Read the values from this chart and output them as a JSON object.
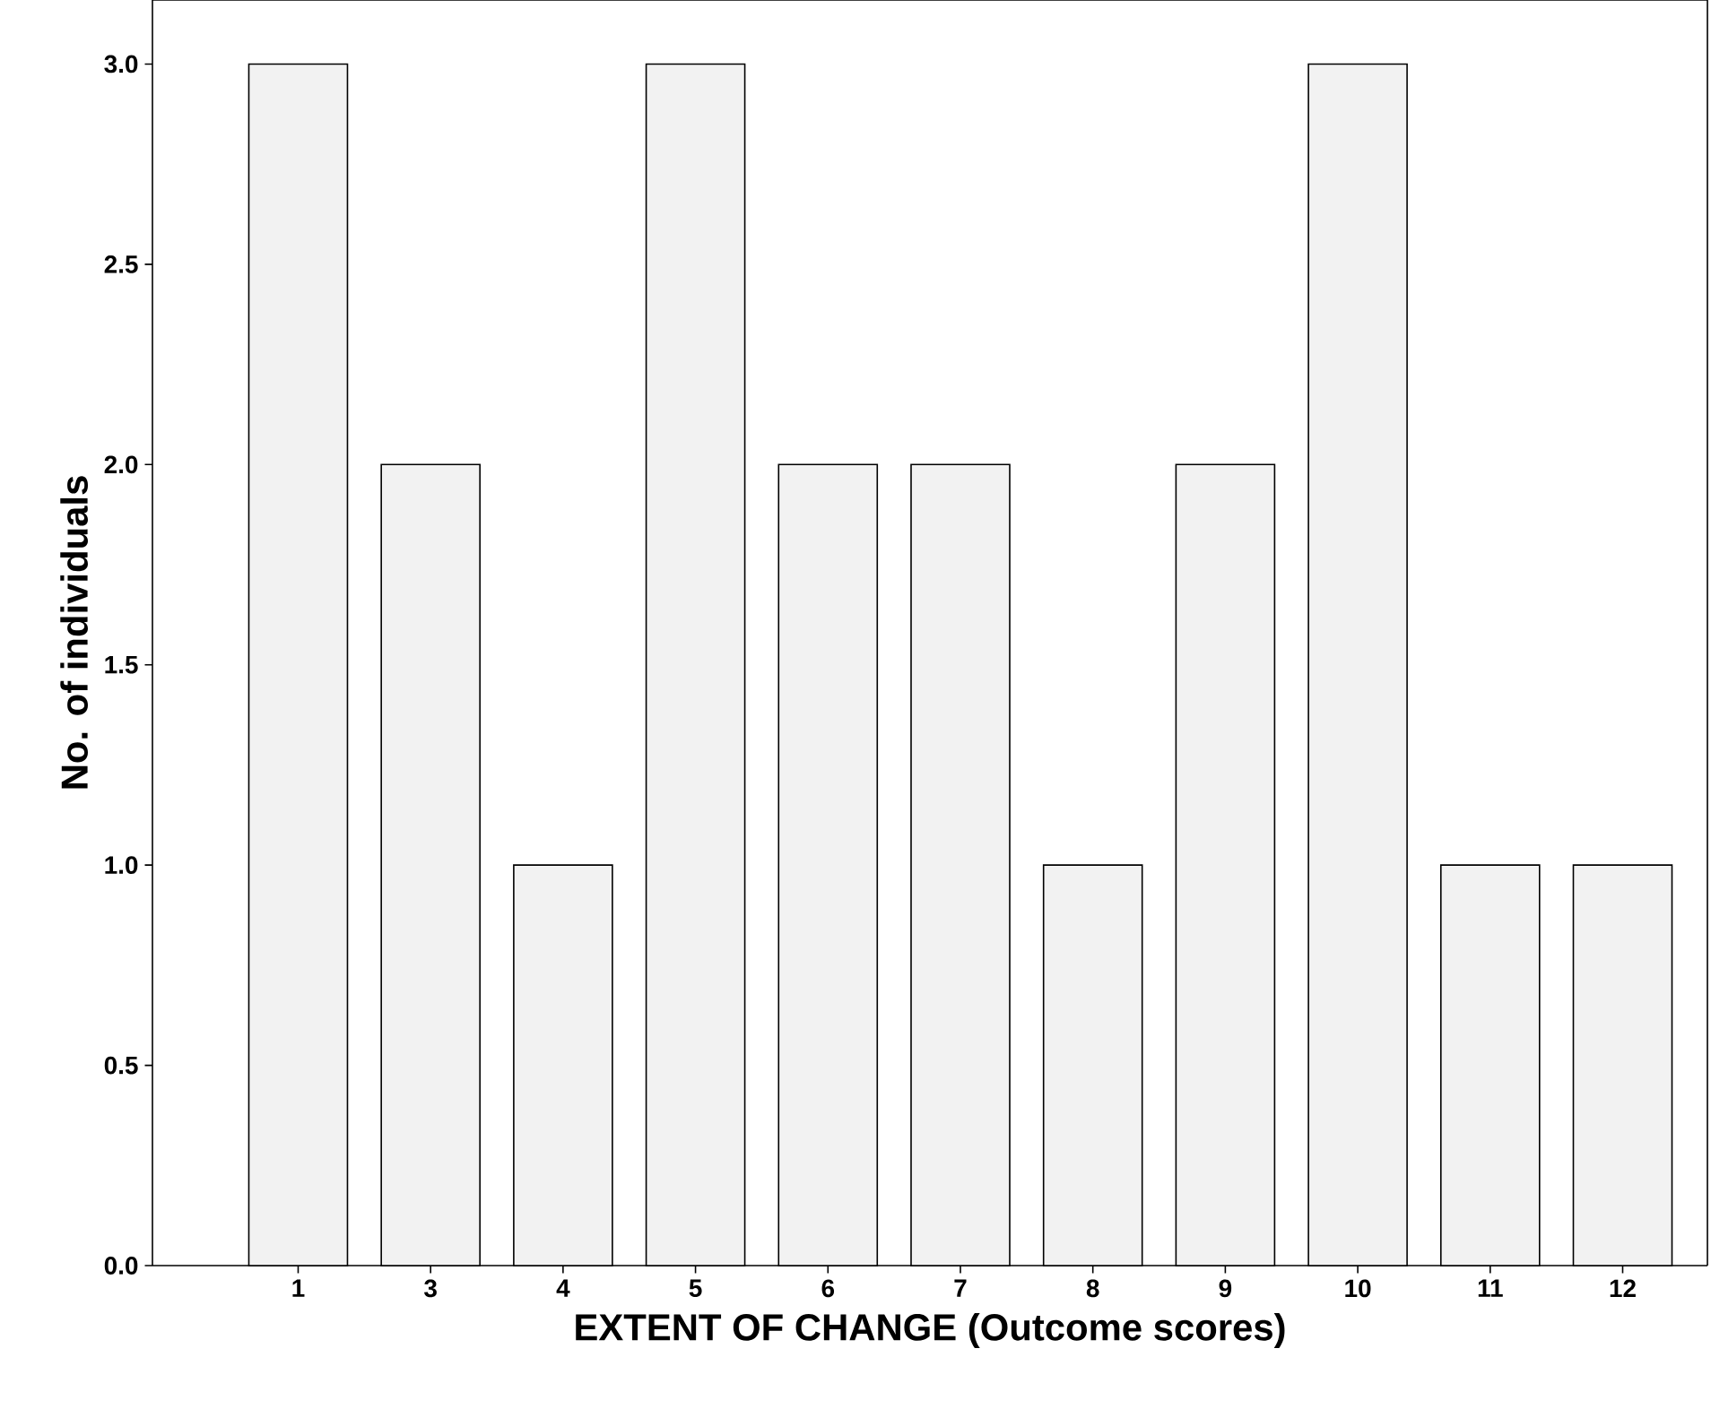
{
  "chart_data": {
    "type": "bar",
    "xlabel": "EXTENT OF CHANGE (Outcome scores)",
    "ylabel": "No. of individuals",
    "categories": [
      "1",
      "3",
      "4",
      "5",
      "6",
      "7",
      "8",
      "9",
      "10",
      "11",
      "12"
    ],
    "values": [
      3,
      2,
      1,
      3,
      2,
      2,
      1,
      2,
      3,
      1,
      1
    ],
    "color": "#f2f2f2",
    "ylim": [
      0,
      3.16
    ],
    "yticks": [
      {
        "value": 0,
        "label": "0.0"
      },
      {
        "value": 0.5,
        "label": "0.5"
      },
      {
        "value": 1,
        "label": "1.0"
      },
      {
        "value": 1.5,
        "label": "1.5"
      },
      {
        "value": 2,
        "label": "2.0"
      },
      {
        "value": 2.5,
        "label": "2.5"
      },
      {
        "value": 3,
        "label": "3.0"
      }
    ],
    "grid": false
  }
}
